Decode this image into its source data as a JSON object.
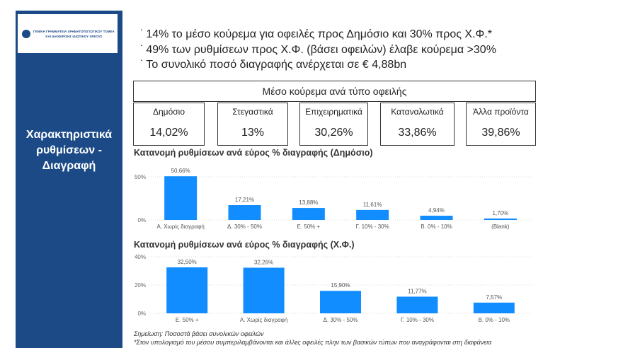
{
  "sidebar": {
    "logo_text": [
      "ΓΕΝΙΚΗ ΓΡΑΜΜΑΤΕΙΑ ΧΡΗΜΑΤΟΠΙΣΤΩΤΙΚΟΥ ΤΟΜΕΑ",
      "ΚΑΙ ΔΙΑΧΕΙΡΙΣΗΣ ΙΔΙΩΤΙΚΟΥ ΧΡΕΟΥΣ"
    ],
    "title": [
      "Χαρακτηριστικά",
      "ρυθμίσεων -",
      "Διαγραφή"
    ]
  },
  "bullets": [
    "14% το μέσο κούρεμα για οφειλές προς Δημόσιο και 30% προς Χ.Φ.*",
    "49% των ρυθμίσεων προς Χ.Φ. (βάσει οφειλών) έλαβε κούρεμα >30%",
    "Το συνολικό ποσό διαγραφής ανέρχεται σε €  4,88bn"
  ],
  "haircut": {
    "title": "Μέσο κούρεμα ανά τύπο οφειλής",
    "cards": [
      {
        "label": "Δημόσιο",
        "value": "14,02%"
      },
      {
        "label": "Στεγαστικά",
        "value": "13%"
      },
      {
        "label": "Επιχειρηματικά",
        "value": "30,26%"
      },
      {
        "label": "Καταναλωτικά",
        "value": "33,86%"
      },
      {
        "label": "Άλλα προϊόντα",
        "value": "39,86%"
      }
    ]
  },
  "chart_data": [
    {
      "type": "bar",
      "title": "Κατανομή ρυθμίσεων ανά εύρος % διαγραφής (Δημόσιο)",
      "categories": [
        "Α. Χωρίς διαγραφή",
        "Δ. 30% - 50%",
        "Ε. 50% +",
        "Γ. 10% - 30%",
        "Β. 0% - 10%",
        "(Blank)"
      ],
      "values": [
        50.66,
        17.21,
        13.88,
        11.61,
        4.94,
        1.7
      ],
      "labels": [
        "50,66%",
        "17,21%",
        "13,88%",
        "11,61%",
        "4,94%",
        "1,70%"
      ],
      "yticks": [
        "0%",
        "50%"
      ],
      "ylim": [
        0,
        50
      ],
      "grid": true,
      "color": "#118dff"
    },
    {
      "type": "bar",
      "title": "Κατανομή ρυθμίσεων ανά εύρος % διαγραφής (Χ.Φ.)",
      "categories": [
        "Ε. 50% +",
        "Α. Χωρίς διαγραφή",
        "Δ. 30% - 50%",
        "Γ. 10% - 30%",
        "Β. 0% - 10%"
      ],
      "values": [
        32.5,
        32.26,
        15.9,
        11.77,
        7.57
      ],
      "labels": [
        "32,50%",
        "32,26%",
        "15,90%",
        "11,77%",
        "7,57%"
      ],
      "yticks": [
        "0%",
        "20%",
        "40%"
      ],
      "ylim": [
        0,
        40
      ],
      "grid": true,
      "color": "#118dff"
    }
  ],
  "notes": [
    "Σημείωση: Ποσοστά βάσει συνολικών οφειλών",
    "*Στον υπολογισμό του μέσου συμπεριλαμβάνονται και άλλες οφειλές πλην των βασικών τύπων που αναγράφονται στη διαφάνεια"
  ]
}
